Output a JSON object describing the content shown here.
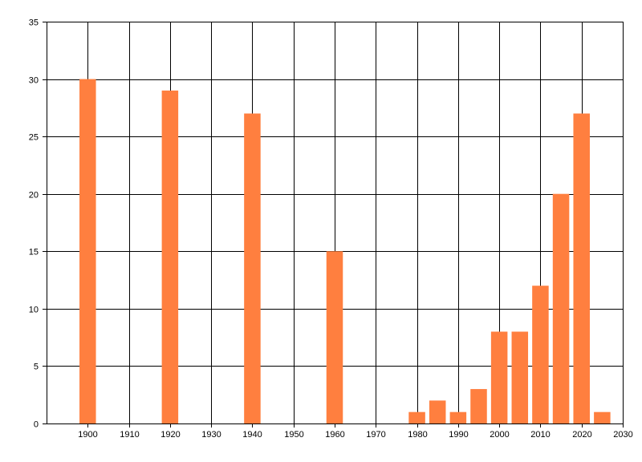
{
  "chart_data": {
    "type": "bar",
    "title": "",
    "xlabel": "",
    "ylabel": "",
    "xlim": [
      1890,
      2030
    ],
    "ylim": [
      0,
      35
    ],
    "x_ticks": [
      1900,
      1910,
      1920,
      1930,
      1940,
      1950,
      1960,
      1970,
      1980,
      1990,
      2000,
      2010,
      2020,
      2030
    ],
    "y_ticks": [
      0,
      5,
      10,
      15,
      20,
      25,
      30,
      35
    ],
    "grid": true,
    "bar_width_years": 4,
    "bar_color": "#ff7f3f",
    "x": [
      1900,
      1920,
      1940,
      1960,
      1980,
      1985,
      1990,
      1995,
      2000,
      2005,
      2010,
      2015,
      2020,
      2025
    ],
    "values": [
      30,
      29,
      27,
      15,
      1,
      2,
      1,
      3,
      8,
      8,
      12,
      20,
      27,
      1
    ]
  }
}
